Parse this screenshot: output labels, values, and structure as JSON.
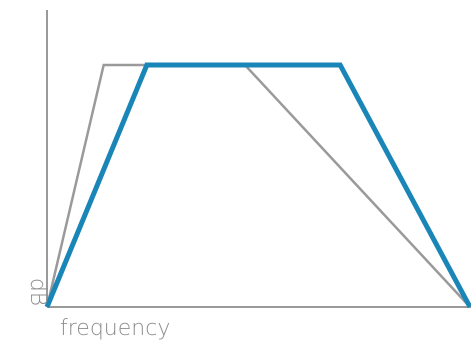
{
  "chart_data": {
    "type": "line",
    "title": "",
    "xlabel": "frequency",
    "ylabel": "dB",
    "grid": false,
    "legend": "none",
    "xlim": [
      0,
      100
    ],
    "ylim": [
      0,
      100
    ],
    "series": [
      {
        "color": "#9a9a9a",
        "x": [
          0,
          13.4,
          46.8,
          100
        ],
        "y": [
          0,
          100,
          100,
          0
        ]
      },
      {
        "color": "#1a86b8",
        "x": [
          0,
          23.6,
          69.3,
          100
        ],
        "y": [
          0,
          100,
          100,
          0
        ]
      }
    ]
  }
}
